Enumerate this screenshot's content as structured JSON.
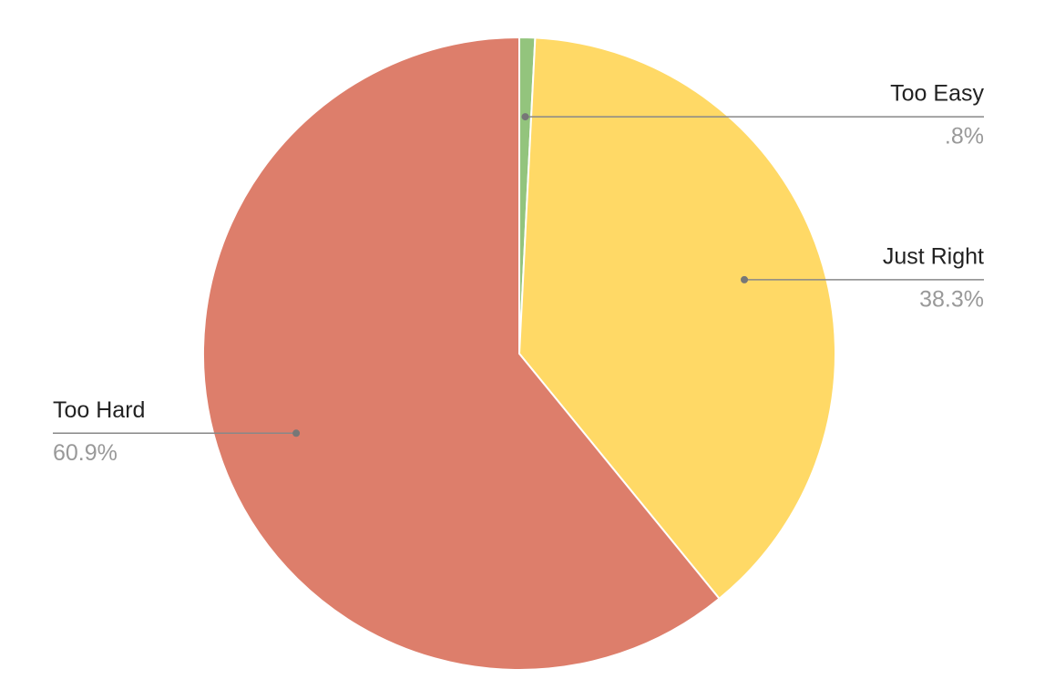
{
  "chart_data": {
    "type": "pie",
    "categories": [
      "Too Easy",
      "Just Right",
      "Too Hard"
    ],
    "values": [
      0.8,
      38.3,
      60.9
    ],
    "value_labels": [
      ".8%",
      "38.3%",
      "60.9%"
    ],
    "colors": [
      "#93c47d",
      "#ffd966",
      "#dd7e6b"
    ]
  }
}
